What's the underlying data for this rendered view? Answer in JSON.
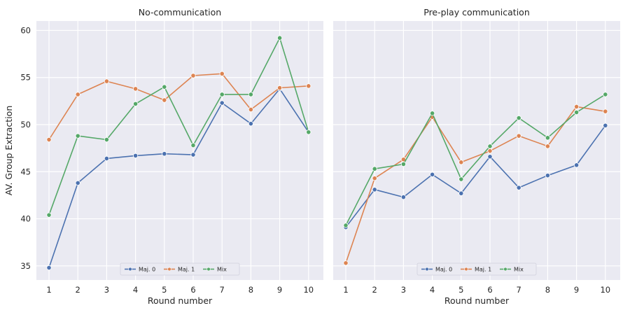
{
  "figure": {
    "ylabel": "AV. Group Extraction",
    "series_colors": [
      "#4c72b0",
      "#dd8452",
      "#55a868"
    ]
  },
  "chart_data": [
    {
      "type": "line",
      "title": "No-communication",
      "xlabel": "Round number",
      "ylabel": "AV. Group Extraction",
      "x": [
        1,
        2,
        3,
        4,
        5,
        6,
        7,
        8,
        9,
        10
      ],
      "xticks": [
        "1",
        "2",
        "3",
        "4",
        "5",
        "6",
        "7",
        "8",
        "9",
        "10"
      ],
      "yticks": [
        "35",
        "40",
        "45",
        "50",
        "55",
        "60"
      ],
      "ylim": [
        33.5,
        61.0
      ],
      "grid": true,
      "legend": "bottom-center",
      "series": [
        {
          "name": "Maj. 0",
          "values": [
            34.8,
            43.8,
            46.4,
            46.7,
            46.9,
            46.8,
            52.3,
            50.1,
            53.8,
            49.2
          ]
        },
        {
          "name": "Maj. 1",
          "values": [
            48.4,
            53.2,
            54.6,
            53.8,
            52.6,
            55.2,
            55.4,
            51.6,
            53.9,
            54.1
          ]
        },
        {
          "name": "Mix",
          "values": [
            40.4,
            48.8,
            48.4,
            52.2,
            54.0,
            47.8,
            53.2,
            53.2,
            59.2,
            49.2
          ]
        }
      ]
    },
    {
      "type": "line",
      "title": "Pre-play communication",
      "xlabel": "Round number",
      "ylabel": "",
      "x": [
        1,
        2,
        3,
        4,
        5,
        6,
        7,
        8,
        9,
        10
      ],
      "xticks": [
        "1",
        "2",
        "3",
        "4",
        "5",
        "6",
        "7",
        "8",
        "9",
        "10"
      ],
      "ylim": [
        33.5,
        61.0
      ],
      "grid": true,
      "legend": "bottom-center",
      "series": [
        {
          "name": "Maj. 0",
          "values": [
            39.1,
            43.1,
            42.3,
            44.7,
            42.7,
            46.6,
            43.3,
            44.6,
            45.7,
            49.9
          ]
        },
        {
          "name": "Maj. 1",
          "values": [
            35.3,
            44.3,
            46.3,
            50.8,
            46.0,
            47.2,
            48.8,
            47.7,
            51.9,
            51.4
          ]
        },
        {
          "name": "Mix",
          "values": [
            39.3,
            45.3,
            45.8,
            51.2,
            44.2,
            47.7,
            50.7,
            48.6,
            51.3,
            53.2
          ]
        }
      ]
    }
  ]
}
